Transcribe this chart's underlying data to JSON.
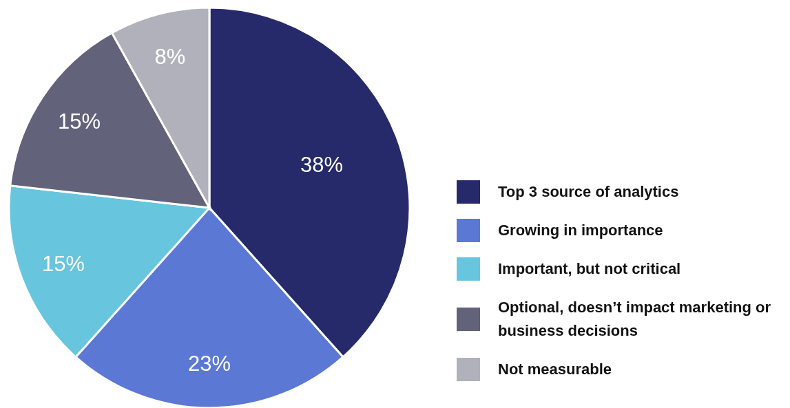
{
  "chart_data": {
    "type": "pie",
    "categories": [
      "Top 3 source of analytics",
      "Growing in importance",
      "Important, but not critical",
      "Optional, doesn’t impact marketing or business decisions",
      "Not measurable"
    ],
    "values": [
      38,
      23,
      15,
      15,
      8
    ],
    "colors": [
      "#262a6b",
      "#5b78d4",
      "#68c5de",
      "#62627a",
      "#b1b1bb"
    ],
    "value_labels": [
      "38%",
      "23%",
      "15%",
      "15%",
      "8%"
    ],
    "legend": "right"
  }
}
